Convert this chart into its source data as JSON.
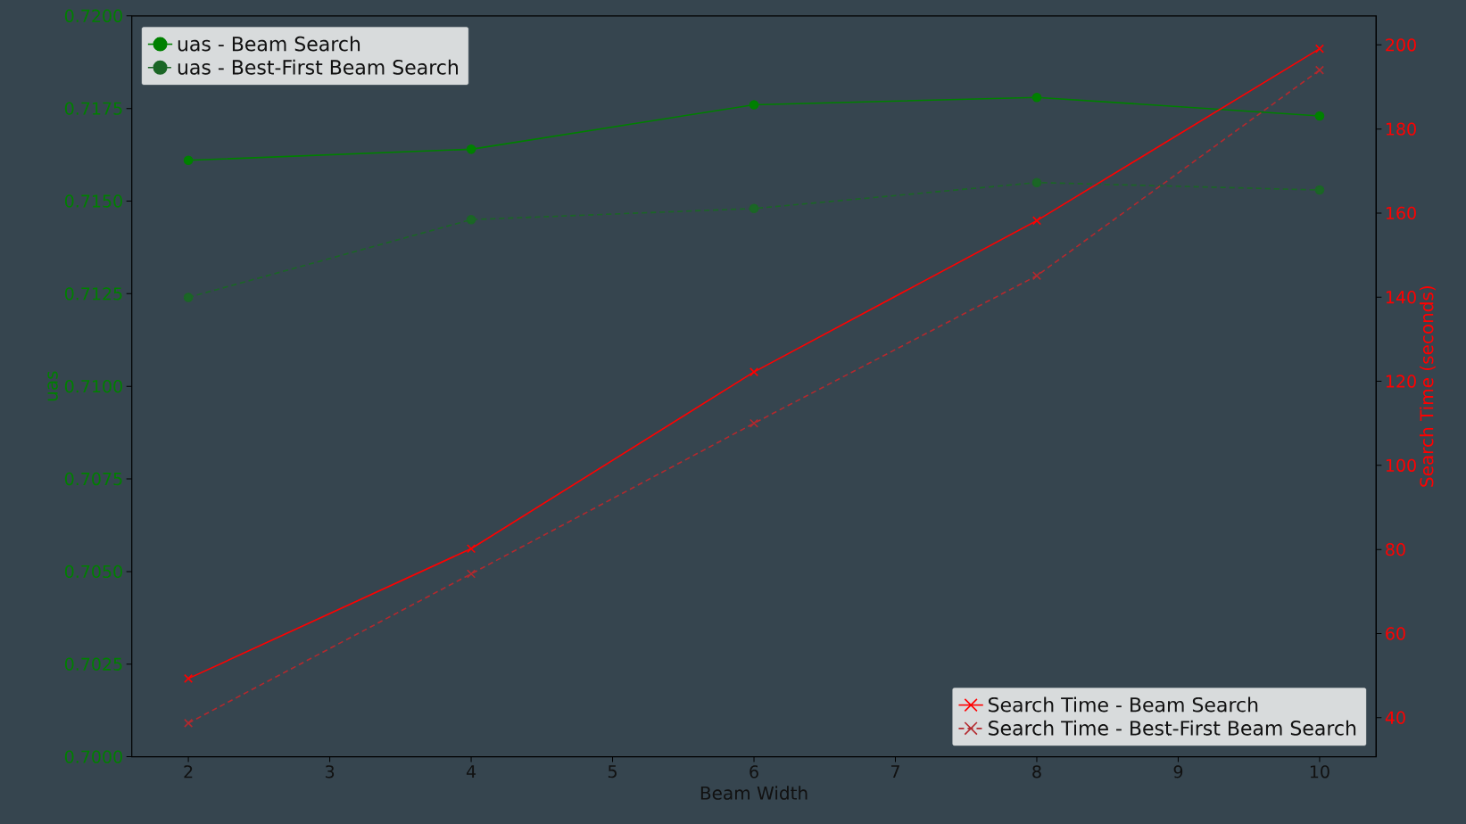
{
  "chart_data": {
    "type": "line",
    "xlabel": "Beam Width",
    "ylabel": "uas",
    "y2label": "Search Time (seconds)",
    "x": [
      2,
      4,
      6,
      8,
      10
    ],
    "xlim": [
      1.6,
      10.4
    ],
    "xticks": [
      2,
      3,
      4,
      5,
      6,
      7,
      8,
      9,
      10
    ],
    "ylim": [
      0.7,
      0.72
    ],
    "yticks": [
      {
        "value": 0.7,
        "label": "0.7000"
      },
      {
        "value": 0.7025,
        "label": "0.7025"
      },
      {
        "value": 0.705,
        "label": "0.7050"
      },
      {
        "value": 0.7075,
        "label": "0.7075"
      },
      {
        "value": 0.71,
        "label": "0.7100"
      },
      {
        "value": 0.7125,
        "label": "0.7125"
      },
      {
        "value": 0.715,
        "label": "0.7150"
      },
      {
        "value": 0.7175,
        "label": "0.7175"
      },
      {
        "value": 0.72,
        "label": "0.7200"
      }
    ],
    "y2lim": [
      30.7,
      206.9
    ],
    "y2ticks": [
      40,
      60,
      80,
      100,
      120,
      140,
      160,
      180,
      200
    ],
    "grid": false,
    "legend": "top left",
    "series": [
      {
        "name": "uas - Beam Search",
        "color": "#008000",
        "values": [
          0.7161,
          0.7164,
          0.7176,
          0.7178,
          0.7173
        ],
        "marker": "circle",
        "line_style": "solid"
      },
      {
        "name": "uas - Best-First Beam Search",
        "color": "#1b6626",
        "values": [
          0.7124,
          0.7145,
          0.7148,
          0.7155,
          0.7153
        ],
        "marker": "circle",
        "line_style": "dashed"
      },
      {
        "name": "Search Time - Beam Search",
        "color": "#ff0000",
        "values": [
          49.3,
          80.2,
          122.2,
          158.2,
          199.1
        ],
        "marker": "cross",
        "line_style": "solid",
        "axis": "y2"
      },
      {
        "name": "Search Time - Best-First Beam Search",
        "color": "#b3292e",
        "values": [
          38.7,
          74.2,
          110,
          145.1,
          194
        ],
        "marker": "cross",
        "line_style": "dashed",
        "axis": "y2"
      }
    ]
  }
}
